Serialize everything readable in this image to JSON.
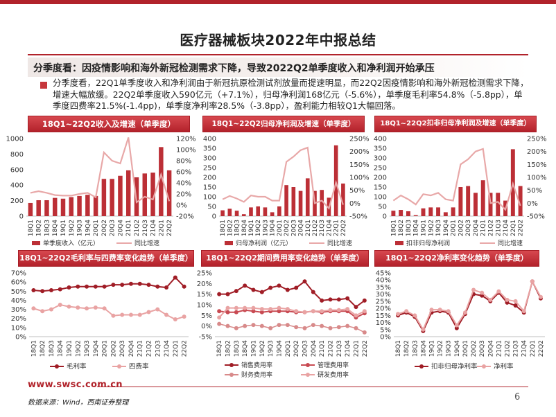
{
  "page": {
    "title": "医疗器械板块2022年中报总结",
    "subtitle": "分季度看：因疫情影响和海外新冠检测需求下降，导致2022Q2单季度收入和净利润开始承压",
    "summary": "分季度看，22Q1单季度收入和净利润由于新冠抗原检测试剂放量而提速明显，而22Q2因疫情影响和海外新冠检测需求下降，增速大幅放缓。22Q2单季度收入590亿元（+7.1%），归母净利润168亿元（-5.6%），单季度毛利率54.8%（-5.8pp），单季度四费率21.5%(-1.4pp)，单季度净利率28.5%（-3.8pp），盈利能力相较Q1大幅回落。",
    "footer_url": "www.swsc.com.cn",
    "footer_source": "数据来源：Wind，西南证券整理",
    "page_number": "6"
  },
  "colors": {
    "brand_red": "#b1232b",
    "bar_red": "#bc2f36",
    "line_pink": "#e8a8a8",
    "line_dark": "#a01d26",
    "line_light": "#e9a3a3"
  },
  "chart_data": [
    {
      "id": "revenue",
      "type": "bar",
      "title": "18Q1~22Q2收入及增速（单季度）",
      "categories": [
        "18Q1",
        "18Q2",
        "18Q3",
        "18Q4",
        "19Q1",
        "19Q2",
        "19Q3",
        "19Q4",
        "20Q1",
        "20Q2",
        "20Q3",
        "20Q4",
        "21Q1",
        "21Q2",
        "21Q3",
        "21Q4",
        "22Q1",
        "22Q2"
      ],
      "x_tick_labels": [
        "18Q1",
        "18Q2",
        "18Q3",
        "18Q4",
        "19Q1",
        "19Q2",
        "19Q3",
        "19Q4",
        "20Q1",
        "20Q2",
        "20Q3",
        "20Q4",
        "21Q1",
        "21Q2",
        "21Q3",
        "21Q4",
        "22Q1",
        "22Q2"
      ],
      "y_left": {
        "min": 0,
        "max": 1000,
        "step": 200,
        "tick_labels": [
          "0",
          "200",
          "400",
          "600",
          "800",
          "1000"
        ]
      },
      "y_right": {
        "min": -20,
        "max": 120,
        "step": 20,
        "tick_labels": [
          "-20%",
          "0%",
          "20%",
          "40%",
          "60%",
          "80%",
          "100%",
          "120%"
        ]
      },
      "series": [
        {
          "name": "单季度收入（亿元）",
          "kind": "bar",
          "axis": "left",
          "values": [
            170,
            205,
            205,
            235,
            225,
            245,
            260,
            275,
            260,
            480,
            480,
            520,
            590,
            500,
            550,
            560,
            890,
            590
          ]
        },
        {
          "name": "同比增速",
          "kind": "line",
          "axis": "right",
          "values": [
            22,
            25,
            22,
            18,
            17,
            17,
            20,
            22,
            14,
            95,
            80,
            75,
            122,
            5,
            15,
            10,
            55,
            7
          ]
        }
      ]
    },
    {
      "id": "net_profit",
      "type": "bar",
      "title": "18Q1~22Q2归母净利润及增速（单季度）",
      "categories": [
        "18Q1",
        "18Q2",
        "18Q3",
        "18Q4",
        "19Q1",
        "19Q2",
        "19Q3",
        "19Q4",
        "20Q1",
        "20Q2",
        "20Q3",
        "20Q4",
        "21Q1",
        "21Q2",
        "21Q3",
        "21Q4",
        "22Q1",
        "22Q2"
      ],
      "x_tick_labels": [
        "18Q1",
        "18Q2",
        "18Q3",
        "18Q4",
        "19Q1",
        "19Q2",
        "19Q3",
        "19Q4",
        "20Q1",
        "20Q2",
        "20Q3",
        "20Q4",
        "21Q1",
        "21Q2",
        "21Q3",
        "21Q4",
        "22Q1",
        "22Q2"
      ],
      "y_left": {
        "min": 0,
        "max": 400,
        "step": 50,
        "tick_labels": [
          "0",
          "50",
          "100",
          "150",
          "200",
          "250",
          "300",
          "350",
          "400"
        ]
      },
      "y_right": {
        "min": -50,
        "max": 250,
        "step": 50,
        "tick_labels": [
          "-50%",
          "0%",
          "50%",
          "100%",
          "150%",
          "200%",
          "250%"
        ]
      },
      "series": [
        {
          "name": "归母净利润（亿元）",
          "kind": "bar",
          "axis": "left",
          "values": [
            30,
            38,
            28,
            10,
            45,
            50,
            45,
            20,
            50,
            160,
            150,
            130,
            195,
            130,
            135,
            95,
            365,
            168
          ]
        },
        {
          "name": "同比增速",
          "kind": "line",
          "axis": "right",
          "values": [
            15,
            28,
            18,
            5,
            30,
            25,
            25,
            10,
            10,
            160,
            180,
            205,
            215,
            0,
            10,
            -20,
            80,
            -6
          ]
        }
      ]
    },
    {
      "id": "deducted_profit",
      "type": "bar",
      "title": "18Q1~22Q2扣非归母净利润及增速（单季度）",
      "categories": [
        "18Q1",
        "18Q2",
        "18Q3",
        "18Q4",
        "19Q1",
        "19Q2",
        "19Q3",
        "19Q4",
        "20Q1",
        "20Q2",
        "20Q3",
        "20Q4",
        "21Q1",
        "21Q2",
        "21Q3",
        "21Q4",
        "22Q1",
        "22Q2"
      ],
      "x_tick_labels": [
        "18Q1",
        "18Q2",
        "18Q3",
        "18Q4",
        "19Q1",
        "19Q2",
        "19Q3",
        "19Q4",
        "20Q1",
        "20Q2",
        "20Q3",
        "20Q4",
        "21Q1",
        "21Q2",
        "21Q3",
        "21Q4",
        "22Q1",
        "22Q2"
      ],
      "y_left": {
        "min": 0,
        "max": 400,
        "step": 50,
        "tick_labels": [
          "0",
          "50",
          "100",
          "150",
          "200",
          "250",
          "300",
          "350",
          "400"
        ]
      },
      "y_right": {
        "min": -50,
        "max": 250,
        "step": 50,
        "tick_labels": [
          "-50%",
          "0%",
          "50%",
          "100%",
          "150%",
          "200%",
          "250%"
        ]
      },
      "series": [
        {
          "name": "扣非归母净利润",
          "kind": "bar",
          "axis": "left",
          "values": [
            28,
            32,
            25,
            5,
            40,
            45,
            45,
            20,
            45,
            150,
            155,
            120,
            185,
            120,
            120,
            80,
            345,
            155
          ]
        },
        {
          "name": "同比增速",
          "kind": "line",
          "axis": "right",
          "values": [
            10,
            30,
            15,
            -5,
            35,
            30,
            40,
            15,
            10,
            150,
            170,
            200,
            210,
            0,
            5,
            -25,
            75,
            -10
          ]
        }
      ]
    },
    {
      "id": "margin",
      "type": "line",
      "title": "18Q1~22Q2毛利率与四费率变化趋势（单季度）",
      "categories": [
        "18Q1",
        "18Q2",
        "18Q3",
        "18Q4",
        "19Q1",
        "19Q2",
        "19Q3",
        "19Q4",
        "20Q1",
        "20Q2",
        "20Q3",
        "20Q4",
        "21Q1",
        "21Q2",
        "21Q3",
        "21Q4",
        "22Q1",
        "22Q2"
      ],
      "x_tick_labels": [
        "18Q1",
        "18Q2",
        "18Q3",
        "18Q4",
        "19Q1",
        "19Q2",
        "19Q3",
        "19Q4",
        "20Q1",
        "20Q2",
        "20Q3",
        "20Q4",
        "21Q1",
        "21Q2",
        "21Q3",
        "21Q4",
        "22Q1",
        "22Q2"
      ],
      "y_left": {
        "min": 0,
        "max": 70,
        "step": 10,
        "tick_labels": [
          "0%",
          "10%",
          "20%",
          "30%",
          "40%",
          "50%",
          "60%",
          "70%"
        ]
      },
      "series": [
        {
          "name": "毛利率",
          "values": [
            51,
            50,
            51,
            52,
            54,
            55,
            55,
            55,
            55,
            57,
            57,
            58,
            58,
            57,
            55,
            54,
            65,
            55
          ]
        },
        {
          "name": "四费率",
          "values": [
            31,
            28,
            30,
            35,
            33,
            32,
            31,
            32,
            31,
            23,
            24,
            24,
            24,
            27,
            30,
            24,
            19,
            22
          ]
        }
      ]
    },
    {
      "id": "expense",
      "type": "line",
      "title": "18Q1~22Q2期间费用率变化趋势（单季度）",
      "categories": [
        "18Q1",
        "18Q2",
        "18Q3",
        "18Q4",
        "19Q1",
        "19Q2",
        "19Q3",
        "19Q4",
        "20Q1",
        "20Q2",
        "20Q3",
        "20Q4",
        "21Q1",
        "21Q2",
        "21Q3",
        "21Q4",
        "22Q1",
        "22Q2"
      ],
      "x_tick_labels": [
        "18Q1",
        "18Q2",
        "18Q3",
        "18Q4",
        "19Q1",
        "19Q2",
        "19Q3",
        "19Q4",
        "20Q1",
        "20Q2",
        "20Q3",
        "20Q4",
        "21Q1",
        "21Q2",
        "21Q3",
        "21Q4",
        "22Q1",
        "22Q2"
      ],
      "y_left": {
        "min": -5,
        "max": 25,
        "step": 5,
        "tick_labels": [
          "-5%",
          "0%",
          "5%",
          "10%",
          "15%",
          "20%",
          "25%"
        ]
      },
      "series": [
        {
          "name": "销售费用率",
          "values": [
            15,
            15,
            16.5,
            19,
            17,
            16,
            18,
            19,
            17,
            18,
            21,
            16,
            12,
            12.5,
            12.5,
            13,
            9,
            12
          ]
        },
        {
          "name": "管理费用率",
          "values": [
            7,
            6.5,
            6.5,
            7.5,
            7,
            6.5,
            7,
            7,
            7,
            6.5,
            6.5,
            7,
            6.5,
            7,
            7,
            7,
            4,
            6
          ]
        },
        {
          "name": "财务费用率",
          "values": [
            1,
            0,
            -1,
            0,
            0.5,
            0,
            -1,
            0.5,
            0.5,
            -0.5,
            -1,
            0.5,
            0,
            -1,
            -0.5,
            0,
            -1,
            -3
          ]
        },
        {
          "name": "研发费用率",
          "values": [
            4,
            8.5,
            8.5,
            8.5,
            8.5,
            8,
            8,
            8.5,
            8,
            7,
            6.5,
            7,
            7,
            7.5,
            7.5,
            8,
            5,
            7
          ]
        }
      ]
    },
    {
      "id": "net_margin",
      "type": "line",
      "title": "18Q1~22Q2净利率变化趋势（单季度）",
      "categories": [
        "18Q1",
        "18Q2",
        "18Q3",
        "18Q4",
        "19Q1",
        "19Q2",
        "19Q3",
        "19Q4",
        "20Q1",
        "20Q2",
        "20Q3",
        "20Q4",
        "21Q1",
        "21Q2",
        "21Q3",
        "21Q4",
        "22Q1",
        "22Q2"
      ],
      "x_tick_labels": [
        "18Q1",
        "18Q2",
        "18Q3",
        "18Q4",
        "19Q1",
        "19Q2",
        "19Q3",
        "19Q4",
        "20Q1",
        "20Q2",
        "20Q3",
        "20Q4",
        "21Q1",
        "21Q2",
        "21Q3",
        "21Q4",
        "22Q1",
        "22Q2"
      ],
      "y_left": {
        "min": 0,
        "max": 45,
        "step": 5,
        "tick_labels": [
          "0%",
          "5%",
          "10%",
          "15%",
          "20%",
          "25%",
          "30%",
          "35%",
          "40%",
          "45%"
        ]
      },
      "series": [
        {
          "name": "扣非归母净利率",
          "values": [
            15,
            17,
            14,
            4,
            17,
            18,
            17,
            6,
            16,
            30,
            29,
            25,
            31,
            24,
            22,
            17,
            39,
            27
          ]
        },
        {
          "name": "净利率",
          "values": [
            16,
            18,
            15,
            5,
            19,
            19,
            18,
            8,
            17,
            33,
            31,
            26,
            32,
            26,
            25,
            18,
            39,
            28
          ]
        }
      ]
    }
  ]
}
